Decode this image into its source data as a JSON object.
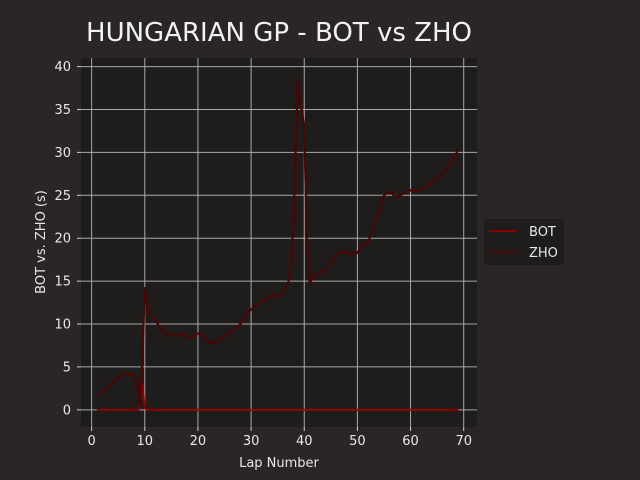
{
  "chart_data": {
    "type": "line",
    "title": "HUNGARIAN GP - BOT vs ZHO",
    "xlabel": "Lap Number",
    "ylabel": "BOT vs. ZHO (s)",
    "xlim": [
      -2,
      72.5
    ],
    "ylim": [
      -2,
      41
    ],
    "xticks": [
      0,
      10,
      20,
      30,
      40,
      50,
      60,
      70
    ],
    "yticks": [
      0,
      5,
      10,
      15,
      20,
      25,
      30,
      35,
      40
    ],
    "grid": true,
    "legend_position": "right",
    "series": [
      {
        "name": "BOT",
        "color": "#8b0000",
        "points": [
          [
            1,
            0
          ],
          [
            2,
            0
          ],
          [
            3,
            0
          ],
          [
            4,
            0
          ],
          [
            5,
            0
          ],
          [
            6,
            0
          ],
          [
            7,
            0
          ],
          [
            8,
            0
          ],
          [
            8.8,
            0
          ],
          [
            9.5,
            3
          ],
          [
            10,
            0.2
          ],
          [
            10.5,
            0
          ],
          [
            11,
            0
          ],
          [
            12,
            0
          ],
          [
            20,
            0
          ],
          [
            30,
            0
          ],
          [
            38,
            0
          ],
          [
            38.5,
            0
          ],
          [
            39,
            0
          ],
          [
            39.5,
            0
          ],
          [
            40,
            0
          ],
          [
            41,
            0
          ],
          [
            50,
            0
          ],
          [
            60,
            0
          ],
          [
            69,
            0
          ]
        ]
      },
      {
        "name": "ZHO",
        "color": "#4a0505",
        "points": [
          [
            1,
            1.6
          ],
          [
            2,
            2.2
          ],
          [
            3,
            2.6
          ],
          [
            4,
            3.2
          ],
          [
            5,
            3.8
          ],
          [
            6,
            4.2
          ],
          [
            7,
            4.1
          ],
          [
            8,
            4.0
          ],
          [
            8.5,
            3.0
          ],
          [
            9,
            0.5
          ],
          [
            9.5,
            5
          ],
          [
            10,
            14.2
          ],
          [
            10.5,
            12
          ],
          [
            11,
            11
          ],
          [
            12,
            10.4
          ],
          [
            13,
            9.5
          ],
          [
            14,
            8.8
          ],
          [
            15,
            8.7
          ],
          [
            16,
            8.6
          ],
          [
            17,
            8.9
          ],
          [
            18,
            8.4
          ],
          [
            19,
            8.5
          ],
          [
            20,
            8.9
          ],
          [
            21,
            8.6
          ],
          [
            22,
            7.8
          ],
          [
            23,
            7.8
          ],
          [
            24,
            8.2
          ],
          [
            25,
            8.6
          ],
          [
            26,
            9.0
          ],
          [
            27,
            9.5
          ],
          [
            28,
            10.0
          ],
          [
            29,
            11.0
          ],
          [
            30,
            11.7
          ],
          [
            31,
            12.2
          ],
          [
            32,
            12.6
          ],
          [
            33,
            13.0
          ],
          [
            34,
            13.4
          ],
          [
            35,
            13.2
          ],
          [
            36,
            13.8
          ],
          [
            37,
            14.8
          ],
          [
            37.5,
            17
          ],
          [
            38,
            22
          ],
          [
            38.5,
            33
          ],
          [
            38.8,
            38.5
          ],
          [
            39,
            37
          ],
          [
            39.5,
            35
          ],
          [
            40,
            33
          ],
          [
            40.5,
            20
          ],
          [
            41,
            14.8
          ],
          [
            42,
            15.8
          ],
          [
            43,
            16.0
          ],
          [
            44,
            16.3
          ],
          [
            45,
            17.1
          ],
          [
            46,
            18.1
          ],
          [
            47,
            18.4
          ],
          [
            48,
            18.3
          ],
          [
            49,
            18.2
          ],
          [
            50,
            18.3
          ],
          [
            51,
            19.2
          ],
          [
            52,
            19.5
          ],
          [
            53,
            21.3
          ],
          [
            54,
            23.0
          ],
          [
            55,
            25.0
          ],
          [
            56,
            25.5
          ],
          [
            57,
            24.9
          ],
          [
            58,
            25.0
          ],
          [
            59,
            25.3
          ],
          [
            60,
            25.6
          ],
          [
            61,
            25.5
          ],
          [
            62,
            25.7
          ],
          [
            63,
            26.0
          ],
          [
            64,
            26.5
          ],
          [
            65,
            27.0
          ],
          [
            66,
            27.5
          ],
          [
            67,
            28.3
          ],
          [
            68,
            29.3
          ],
          [
            69,
            30.3
          ]
        ]
      }
    ]
  }
}
